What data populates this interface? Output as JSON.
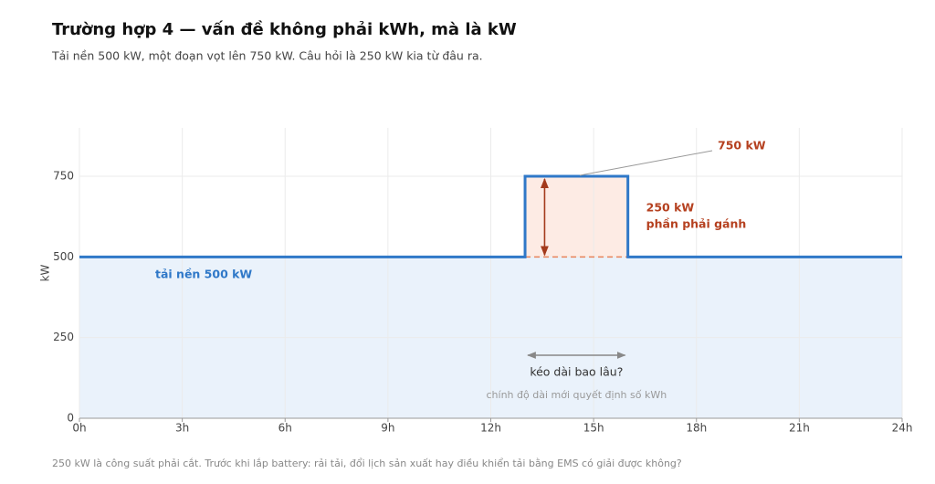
{
  "chart_data": {
    "type": "line",
    "title": "Trường hợp 4 — vấn đề không phải kWh, mà là kW",
    "subtitle": "Tải nền 500 kW, một đoạn vọt lên 750 kW. Câu hỏi là 250 kW kia từ đâu ra.",
    "y_label": "kW",
    "footnote": "250 kW là công suất phải cắt. Trước khi lắp battery: rải tải, đổi lịch sản xuất hay điều khiển tải bằng EMS có giải được không?",
    "x": [
      0,
      13,
      13,
      16,
      16,
      24
    ],
    "series": [
      {
        "color": "#2f78c8",
        "values": [
          500,
          500,
          750,
          750,
          500,
          500
        ]
      }
    ],
    "area_color": "#eaf2fb",
    "excess_color": "#fdebe4",
    "accent_color": "#b5401f",
    "xlim": [
      0,
      24
    ],
    "xticks": [
      {
        "value": 0,
        "label": "0h"
      },
      {
        "value": 3,
        "label": "3h"
      },
      {
        "value": 6,
        "label": "6h"
      },
      {
        "value": 9,
        "label": "9h"
      },
      {
        "value": 12,
        "label": "12h"
      },
      {
        "value": 15,
        "label": "15h"
      },
      {
        "value": 18,
        "label": "18h"
      },
      {
        "value": 21,
        "label": "21h"
      },
      {
        "value": 24,
        "label": "24h"
      }
    ],
    "ylim": [
      0,
      900
    ],
    "yticks": [
      0,
      250,
      500,
      750
    ],
    "grid": true,
    "peak_label": "750 kW",
    "excess_label": [
      "250 kW",
      "phần phải gánh"
    ],
    "base_label": "tải nền 500 kW",
    "duration_label": "kéo dài bao lâu?",
    "duration_note": "chính độ dài mới quyết định số kWh"
  }
}
